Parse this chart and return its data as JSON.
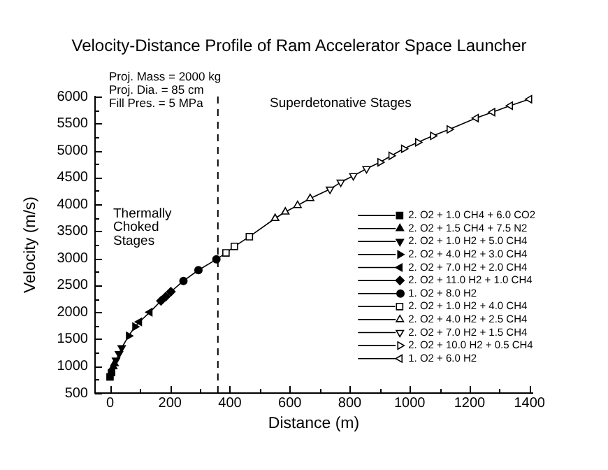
{
  "chart_data": {
    "type": "scatter",
    "title": "Velocity-Distance Profile of Ram Accelerator Space Launcher",
    "xlabel": "Distance (m)",
    "ylabel": "Velocity (m/s)",
    "annotations": [
      "Proj. Mass = 2000 kg",
      "Proj. Dia. = 85 cm",
      "Fill Pres. = 5 MPa",
      "Thermally Choked Stages",
      "Superdetonative Stages"
    ],
    "xlim": [
      -50,
      1410
    ],
    "xticks": [
      0,
      {
        "value": 100,
        "label": null
      },
      200,
      {
        "value": 300,
        "label": null
      },
      400,
      {
        "value": 500,
        "label": null
      },
      600,
      {
        "value": 700,
        "label": null
      },
      800,
      {
        "value": 900,
        "label": null
      },
      1000,
      {
        "value": 1100,
        "label": null
      },
      1200,
      {
        "value": 1300,
        "label": null
      },
      1400
    ],
    "ylim": [
      500,
      6000
    ],
    "yticks": [
      500,
      {
        "value": 750,
        "label": null
      },
      1000,
      {
        "value": 1250,
        "label": null
      },
      1500,
      {
        "value": 1750,
        "label": null
      },
      2000,
      {
        "value": 2250,
        "label": null
      },
      2500,
      {
        "value": 2750,
        "label": null
      },
      3000,
      {
        "value": 3250,
        "label": null
      },
      3500,
      {
        "value": 3750,
        "label": null
      },
      4000,
      {
        "value": 4250,
        "label": null
      },
      4500,
      {
        "value": 4750,
        "label": null
      },
      5000,
      {
        "value": 5250,
        "label": null
      },
      5500,
      {
        "value": 5750,
        "label": null
      },
      6000
    ],
    "legend": "bottom right",
    "ref_lines": [
      {
        "axis": "x",
        "value": 360,
        "color": "#000000",
        "line_style": "dashed"
      }
    ],
    "series": [
      {
        "type": "line",
        "color": "#000000",
        "marker": "none",
        "line_style": "solid",
        "x": [
          0,
          5,
          11,
          15,
          20,
          30,
          39,
          62,
          83,
          98,
          133,
          170,
          186,
          203,
          245,
          295,
          355,
          387,
          415,
          465,
          551,
          585,
          626,
          668,
          734,
          770,
          812,
          856,
          901,
          938,
          980,
          1027,
          1077,
          1132,
          1222,
          1277,
          1336,
          1400
        ],
        "values": [
          800,
          880,
          990,
          1050,
          1110,
          1230,
          1340,
          1560,
          1730,
          1820,
          2000,
          2210,
          2290,
          2380,
          2580,
          2780,
          2980,
          3100,
          3220,
          3400,
          3740,
          3860,
          3980,
          4110,
          4280,
          4410,
          4530,
          4660,
          4780,
          4900,
          5030,
          5150,
          5270,
          5390,
          5600,
          5710,
          5830,
          5950
        ]
      },
      {
        "name": "2. O2 + 1.0 CH4 + 6.0 CO2",
        "color": "#000000",
        "marker": "square",
        "x": [
          0,
          5
        ],
        "values": [
          800,
          880
        ]
      },
      {
        "name": "2. O2 + 1.5 CH4 + 7.5 N2",
        "color": "#000000",
        "marker": "triangle",
        "x": [
          11,
          15
        ],
        "values": [
          990,
          1050
        ]
      },
      {
        "name": "2. O2 + 1.0 H2 + 5.0 CH4",
        "color": "#000000",
        "marker": "triangle-down",
        "x": [
          20,
          30,
          39
        ],
        "values": [
          1110,
          1230,
          1340
        ]
      },
      {
        "name": "2. O2 + 4.0 H2 + 3.0 CH4",
        "color": "#000000",
        "marker": "triangle-right",
        "x": [
          62,
          83
        ],
        "values": [
          1560,
          1730
        ]
      },
      {
        "name": "2. O2 + 7.0 H2 + 2.0 CH4",
        "color": "#000000",
        "marker": "triangle-left",
        "x": [
          98,
          133
        ],
        "values": [
          1820,
          2000
        ]
      },
      {
        "name": "2. O2 + 11.0 H2 + 1.0 CH4",
        "color": "#000000",
        "marker": "diamond",
        "x": [
          170,
          186,
          203
        ],
        "values": [
          2210,
          2290,
          2380
        ]
      },
      {
        "name": "1. O2 + 8.0 H2",
        "color": "#000000",
        "marker": "circle",
        "x": [
          245,
          295,
          355
        ],
        "values": [
          2580,
          2780,
          2980
        ]
      },
      {
        "name": "2. O2 + 1.0 H2 + 4.0 CH4",
        "color": "#000000",
        "marker": "square-open",
        "x": [
          387,
          415,
          465
        ],
        "values": [
          3100,
          3220,
          3400
        ]
      },
      {
        "name": "2. O2 + 4.0 H2 + 2.5 CH4",
        "color": "#000000",
        "marker": "triangle-open",
        "x": [
          551,
          585,
          626,
          668
        ],
        "values": [
          3740,
          3860,
          3980,
          4110
        ]
      },
      {
        "name": "2. O2 + 7.0 H2 + 1.5 CH4",
        "color": "#000000",
        "marker": "triangle-down-open",
        "x": [
          734,
          770,
          812,
          856
        ],
        "values": [
          4280,
          4410,
          4530,
          4660
        ]
      },
      {
        "name": "2. O2 + 10.0 H2 + 0.5 CH4",
        "color": "#000000",
        "marker": "triangle-right-open",
        "x": [
          901,
          938,
          980,
          1027,
          1077,
          1132
        ],
        "values": [
          4780,
          4900,
          5030,
          5150,
          5270,
          5390
        ]
      },
      {
        "name": "1. O2 + 6.0 H2",
        "color": "#000000",
        "marker": "triangle-left-open",
        "x": [
          1222,
          1277,
          1336,
          1400
        ],
        "values": [
          5600,
          5710,
          5830,
          5950
        ]
      }
    ]
  }
}
